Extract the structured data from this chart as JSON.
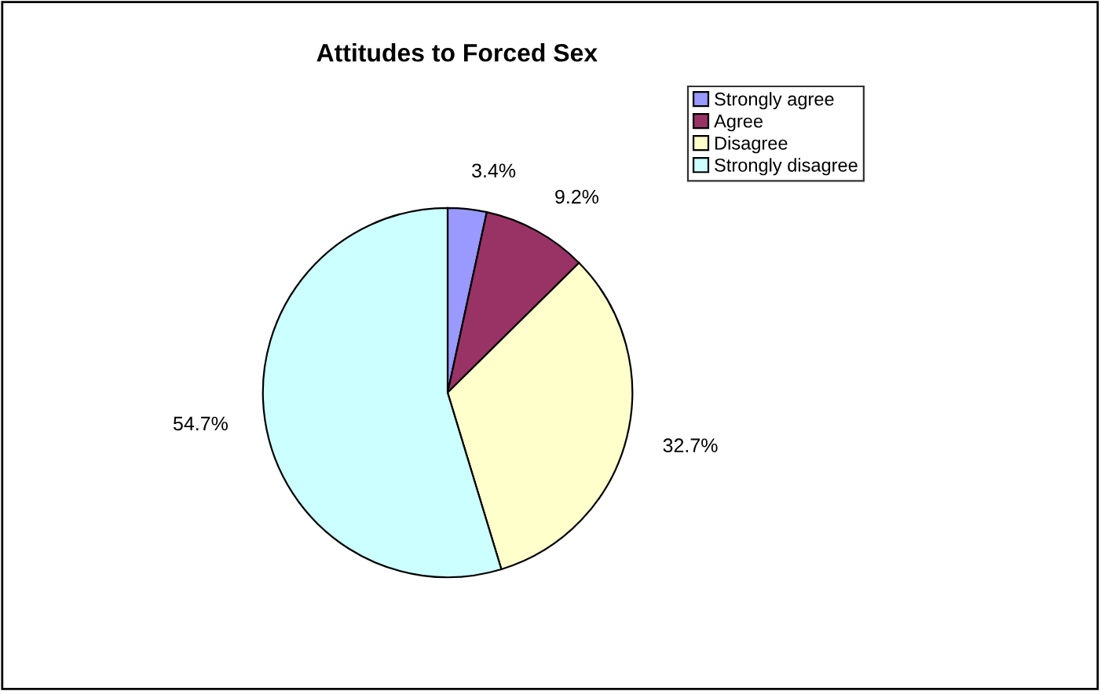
{
  "chart_data": {
    "type": "pie",
    "title": "Attitudes to Forced Sex",
    "categories": [
      "Strongly agree",
      "Agree",
      "Disagree",
      "Strongly disagree"
    ],
    "values": [
      3.4,
      9.2,
      32.7,
      54.7
    ],
    "value_labels": [
      "3.4%",
      "9.2%",
      "32.7%",
      "54.7%"
    ],
    "colors": [
      "#9999ff",
      "#993366",
      "#ffffcc",
      "#ccffff"
    ],
    "legend": "right"
  }
}
